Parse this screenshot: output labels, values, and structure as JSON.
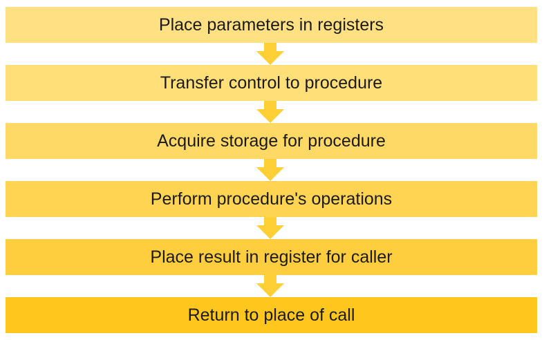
{
  "flowchart": {
    "steps": [
      {
        "label": "Place parameters in registers",
        "color": "#FFE082"
      },
      {
        "label": "Transfer control to procedure",
        "color": "#FFDF78"
      },
      {
        "label": "Acquire storage for procedure",
        "color": "#FFD966"
      },
      {
        "label": "Perform procedure's operations",
        "color": "#FFD452"
      },
      {
        "label": "Place result in register for caller",
        "color": "#FFCE3F"
      },
      {
        "label": "Return to place of call",
        "color": "#FFC61E"
      }
    ],
    "arrow_color": "#FFD036",
    "arrow_icon": "arrow-down-icon"
  }
}
